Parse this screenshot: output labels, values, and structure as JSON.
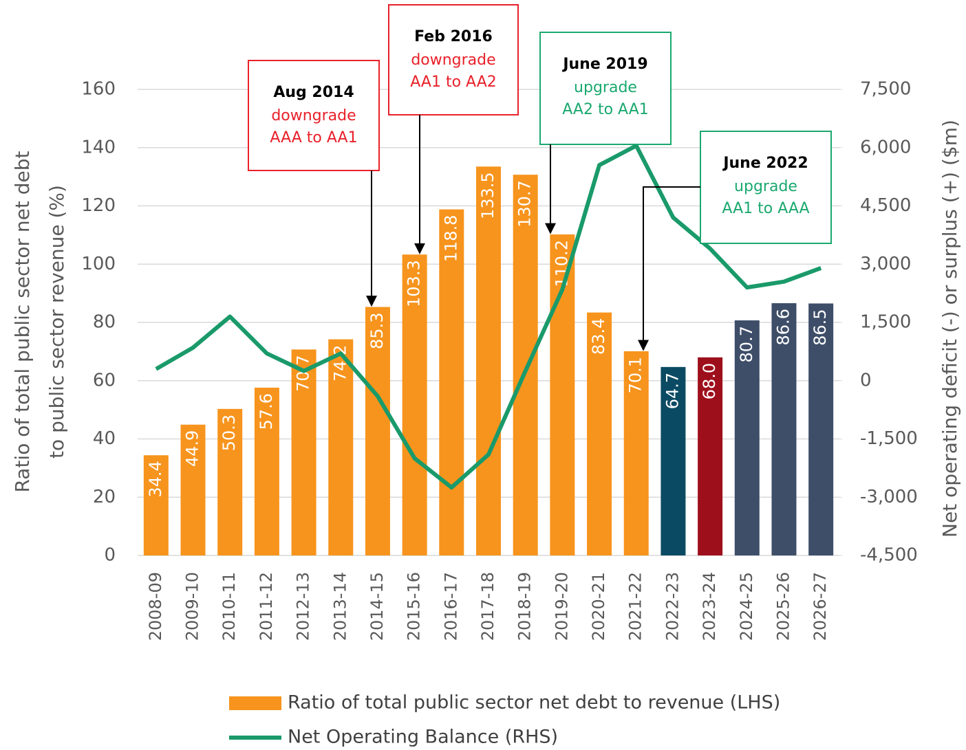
{
  "chart_data": {
    "type": "bar_line",
    "categories": [
      "2008-09",
      "2009-10",
      "2010-11",
      "2011-12",
      "2012-13",
      "2013-14",
      "2014-15",
      "2015-16",
      "2016-17",
      "2017-18",
      "2018-19",
      "2019-20",
      "2020-21",
      "2021-22",
      "2022-23",
      "2023-24",
      "2024-25",
      "2025-26",
      "2026-27"
    ],
    "series": [
      {
        "name": "Ratio of total public sector net debt to revenue (LHS)",
        "color": "#f7941d",
        "colors": [
          "#f7941d",
          "#f7941d",
          "#f7941d",
          "#f7941d",
          "#f7941d",
          "#f7941d",
          "#f7941d",
          "#f7941d",
          "#f7941d",
          "#f7941d",
          "#f7941d",
          "#f7941d",
          "#f7941d",
          "#f7941d",
          "#0b4a63",
          "#9e0f1c",
          "#3e4e69",
          "#3e4e69",
          "#3e4e69"
        ],
        "values": [
          34.4,
          44.9,
          50.3,
          57.6,
          70.7,
          74.2,
          85.3,
          103.3,
          118.8,
          133.5,
          130.7,
          110.2,
          83.4,
          70.1,
          64.7,
          68.0,
          80.7,
          86.6,
          86.5
        ],
        "value_labels": [
          "34.4",
          "44.9",
          "50.3",
          "57.6",
          "70.7",
          "74.2",
          "85.3",
          "103.3",
          "118.8",
          "133.5",
          "130.7",
          "110.2",
          "83.4",
          "70.1",
          "64.7",
          "68.0",
          "80.7",
          "86.6",
          "86.5"
        ]
      },
      {
        "name": "Net Operating Balance (RHS)",
        "color": "#1a9a6a",
        "axis": "y2",
        "values": [
          300,
          850,
          1650,
          700,
          250,
          700,
          -400,
          -2000,
          -2750,
          -1900,
          250,
          2350,
          5550,
          6050,
          4200,
          3400,
          2400,
          2550,
          2900
        ]
      }
    ],
    "y_label_lines": [
      "Ratio of total public sector net debt",
      "to public sector revenue (%)"
    ],
    "y2_label": "Net operating deficit (-) or surplus (+) ($m)",
    "ylim": [
      0,
      160
    ],
    "yticks": [
      0,
      20,
      40,
      60,
      80,
      100,
      120,
      140,
      160
    ],
    "y2lim": [
      -4500,
      7500
    ],
    "y2ticks": [
      {
        "value": -4500,
        "label": "-4,500"
      },
      {
        "value": -3000,
        "label": "-3,000"
      },
      {
        "value": -1500,
        "label": "-1,500"
      },
      0,
      {
        "value": 1500,
        "label": "1,500"
      },
      {
        "value": 3000,
        "label": "3,000"
      },
      {
        "value": 4500,
        "label": "4,500"
      },
      {
        "value": 6000,
        "label": "6,000"
      },
      {
        "value": 7500,
        "label": "7,500"
      }
    ],
    "grid": true,
    "legend": "bottom",
    "annotations": [
      {
        "title": "Aug 2014",
        "lines": [
          "downgrade",
          "AAA to AA1"
        ],
        "color": "#e8202a"
      },
      {
        "title": "Feb 2016",
        "lines": [
          "downgrade",
          "AA1 to AA2"
        ],
        "color": "#e8202a"
      },
      {
        "title": "June 2019",
        "lines": [
          "upgrade",
          "AA2 to AA1"
        ],
        "color": "#1aa86e"
      },
      {
        "title": "June 2022",
        "lines": [
          "upgrade",
          "AA1 to AAA"
        ],
        "color": "#1aa86e"
      }
    ]
  }
}
